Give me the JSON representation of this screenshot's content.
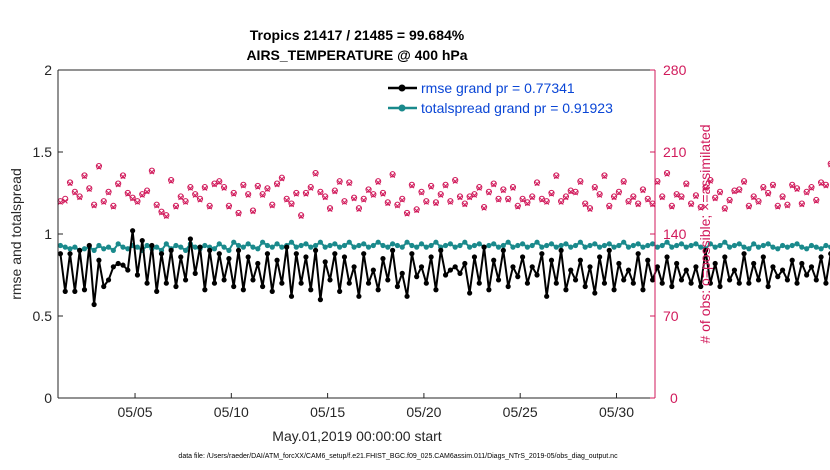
{
  "chart_data": {
    "type": "line",
    "title": "Tropics 21417 / 21485 = 99.684%",
    "subtitle": "AIRS_TEMPERATURE @ 400 hPa",
    "xlabel": "May.01,2019 00:00:00 start",
    "ylabel_left": "rmse and totalspread",
    "ylabel_right": "# of obs: o=possible; ×=assimilated",
    "footnote": "data file: /Users/raeder/DAI/ATM_forcXX/CAM6_setup/f.e21.FHIST_BGC.f09_025.CAM6assim.011/Diags_NTrS_2019-05/obs_diag_output.nc",
    "x_day_range": [
      1,
      32
    ],
    "x_ticks": [
      {
        "day": 5,
        "label": "05/05"
      },
      {
        "day": 10,
        "label": "05/10"
      },
      {
        "day": 15,
        "label": "05/15"
      },
      {
        "day": 20,
        "label": "05/20"
      },
      {
        "day": 25,
        "label": "05/25"
      },
      {
        "day": 30,
        "label": "05/30"
      }
    ],
    "ylim_left": [
      0,
      2
    ],
    "yticks_left": [
      "0",
      "0.5",
      "1",
      "1.5",
      "2"
    ],
    "ylim_right": [
      0,
      280
    ],
    "yticks_right": [
      "0",
      "70",
      "140",
      "210",
      "280"
    ],
    "legend": [
      {
        "label": "rmse grand pr = 0.77341",
        "color": "#000000"
      },
      {
        "label": "totalspread grand pr = 0.91923",
        "color": "#1a8a8c"
      }
    ],
    "samples_per_day": 4,
    "colors": {
      "rmse": "#000000",
      "spread": "#1a8a8c",
      "obs": "#d11a5b",
      "axis": "#262626"
    },
    "series": [
      {
        "name": "rmse",
        "values": [
          0.88,
          0.65,
          0.88,
          0.65,
          0.9,
          0.66,
          0.93,
          0.57,
          0.84,
          0.68,
          0.72,
          0.8,
          0.82,
          0.81,
          0.78,
          1.02,
          0.75,
          0.96,
          0.7,
          0.93,
          0.65,
          0.88,
          0.7,
          0.9,
          0.68,
          0.86,
          0.72,
          0.97,
          0.76,
          0.92,
          0.66,
          0.9,
          0.7,
          0.88,
          0.72,
          0.85,
          0.68,
          0.9,
          0.66,
          0.86,
          0.72,
          0.82,
          0.68,
          0.88,
          0.65,
          0.84,
          0.7,
          0.92,
          0.62,
          0.88,
          0.7,
          0.86,
          0.66,
          0.9,
          0.6,
          0.83,
          0.72,
          0.88,
          0.65,
          0.86,
          0.7,
          0.8,
          0.62,
          0.88,
          0.7,
          0.78,
          0.66,
          0.85,
          0.72,
          0.9,
          0.68,
          0.76,
          0.62,
          0.88,
          0.74,
          0.8,
          0.7,
          0.86,
          0.66,
          0.9,
          0.75,
          0.78,
          0.8,
          0.76,
          0.82,
          0.64,
          0.86,
          0.7,
          0.92,
          0.66,
          0.84,
          0.72,
          0.9,
          0.68,
          0.8,
          0.74,
          0.86,
          0.7,
          0.8,
          0.75,
          0.88,
          0.62,
          0.84,
          0.7,
          0.9,
          0.66,
          0.78,
          0.72,
          0.84,
          0.68,
          0.8,
          0.64,
          0.86,
          0.7,
          0.9,
          0.66,
          0.82,
          0.72,
          0.78,
          0.7,
          0.88,
          0.66,
          0.84,
          0.72,
          0.8,
          0.7,
          0.86,
          0.68,
          0.82,
          0.72,
          0.78,
          0.7,
          0.8,
          0.68,
          0.9,
          0.7,
          0.82,
          0.68,
          0.86,
          0.72,
          0.78,
          0.7,
          0.88,
          0.7,
          0.82,
          0.72,
          0.86,
          0.68,
          0.8,
          0.74,
          0.78,
          0.72,
          0.84,
          0.7,
          0.82,
          0.75,
          0.8,
          0.72,
          0.86,
          0.7,
          0.88,
          0.72,
          0.78,
          0.8,
          0.84,
          0.8,
          0.82,
          0.62,
          0.8,
          0.82,
          0.78,
          0.8,
          0.7,
          0.68
        ]
      },
      {
        "name": "totalspread",
        "values": [
          0.93,
          0.92,
          0.91,
          0.92,
          0.9,
          0.91,
          0.92,
          0.9,
          0.93,
          0.91,
          0.92,
          0.9,
          0.94,
          0.92,
          0.91,
          0.93,
          0.92,
          0.9,
          0.93,
          0.91,
          0.92,
          0.9,
          0.94,
          0.91,
          0.93,
          0.92,
          0.9,
          0.94,
          0.92,
          0.91,
          0.93,
          0.92,
          0.91,
          0.94,
          0.92,
          0.9,
          0.95,
          0.93,
          0.92,
          0.94,
          0.92,
          0.91,
          0.95,
          0.93,
          0.92,
          0.94,
          0.92,
          0.93,
          0.95,
          0.92,
          0.93,
          0.94,
          0.92,
          0.93,
          0.95,
          0.92,
          0.93,
          0.94,
          0.92,
          0.93,
          0.95,
          0.92,
          0.93,
          0.94,
          0.92,
          0.93,
          0.95,
          0.93,
          0.92,
          0.94,
          0.93,
          0.92,
          0.95,
          0.93,
          0.92,
          0.94,
          0.92,
          0.93,
          0.95,
          0.92,
          0.93,
          0.94,
          0.92,
          0.93,
          0.95,
          0.92,
          0.93,
          0.94,
          0.92,
          0.93,
          0.94,
          0.92,
          0.93,
          0.95,
          0.92,
          0.93,
          0.94,
          0.92,
          0.93,
          0.95,
          0.92,
          0.93,
          0.94,
          0.92,
          0.93,
          0.94,
          0.92,
          0.93,
          0.95,
          0.92,
          0.93,
          0.94,
          0.92,
          0.93,
          0.94,
          0.92,
          0.93,
          0.95,
          0.92,
          0.93,
          0.94,
          0.92,
          0.93,
          0.94,
          0.92,
          0.93,
          0.95,
          0.92,
          0.93,
          0.94,
          0.92,
          0.93,
          0.94,
          0.92,
          0.91,
          0.94,
          0.92,
          0.93,
          0.95,
          0.92,
          0.93,
          0.94,
          0.92,
          0.91,
          0.94,
          0.92,
          0.93,
          0.94,
          0.92,
          0.91,
          0.93,
          0.92,
          0.93,
          0.94,
          0.92,
          0.91,
          0.93,
          0.92,
          0.91,
          0.93,
          0.92,
          0.91,
          0.92,
          0.91,
          0.9,
          0.92,
          0.91,
          0.9,
          0.91,
          0.9,
          0.9,
          0.91,
          0.9,
          0.9,
          0.9,
          0.91,
          0.9,
          0.9
        ]
      },
      {
        "name": "obs_possible",
        "axis": "right",
        "values": [
          168,
          170,
          184,
          176,
          172,
          190,
          179,
          165,
          198,
          168,
          176,
          164,
          183,
          190,
          175,
          171,
          168,
          174,
          177,
          194,
          165,
          159,
          156,
          186,
          164,
          172,
          168,
          180,
          174,
          170,
          180,
          164,
          183,
          185,
          180,
          164,
          175,
          158,
          182,
          174,
          160,
          181,
          174,
          179,
          165,
          183,
          188,
          170,
          166,
          175,
          156,
          175,
          180,
          192,
          176,
          172,
          162,
          177,
          185,
          168,
          184,
          171,
          162,
          170,
          178,
          174,
          185,
          175,
          167,
          191,
          165,
          170,
          158,
          182,
          161,
          176,
          168,
          181,
          167,
          174,
          182,
          168,
          186,
          172,
          166,
          172,
          174,
          180,
          163,
          176,
          183,
          170,
          178,
          170,
          180,
          164,
          170,
          167,
          172,
          184,
          170,
          168,
          175,
          190,
          168,
          172,
          177,
          176,
          185,
          166,
          162,
          180,
          174,
          190,
          164,
          172,
          176,
          185,
          168,
          172,
          166,
          178,
          170,
          166,
          185,
          172,
          192,
          164,
          174,
          172,
          183,
          166,
          173,
          163,
          180,
          186,
          171,
          176,
          162,
          169,
          177,
          178,
          185,
          164,
          172,
          168,
          180,
          175,
          182,
          164,
          172,
          165,
          182,
          179,
          166,
          176,
          180,
          169,
          184,
          182,
          200,
          176,
          166,
          170,
          188,
          176,
          174,
          183,
          176,
          168,
          164,
          180,
          172,
          175,
          174,
          186,
          168,
          172,
          176,
          158,
          176,
          180,
          180,
          170,
          152,
          190
        ]
      },
      {
        "name": "obs_assimilated",
        "axis": "right",
        "values": [
          167,
          168,
          183,
          175,
          171,
          189,
          178,
          164,
          197,
          167,
          175,
          163,
          182,
          189,
          174,
          170,
          167,
          173,
          176,
          193,
          164,
          158,
          155,
          185,
          163,
          171,
          167,
          179,
          173,
          169,
          179,
          163,
          182,
          184,
          179,
          163,
          174,
          157,
          181,
          173,
          159,
          180,
          173,
          178,
          164,
          182,
          187,
          169,
          165,
          174,
          155,
          174,
          179,
          191,
          175,
          171,
          161,
          176,
          184,
          167,
          183,
          170,
          161,
          169,
          177,
          173,
          184,
          174,
          166,
          190,
          164,
          169,
          157,
          181,
          160,
          175,
          167,
          180,
          166,
          173,
          181,
          167,
          185,
          171,
          165,
          171,
          173,
          179,
          162,
          175,
          182,
          169,
          177,
          169,
          179,
          163,
          169,
          166,
          171,
          183,
          169,
          167,
          174,
          189,
          167,
          171,
          176,
          175,
          184,
          165,
          161,
          179,
          173,
          189,
          163,
          171,
          175,
          184,
          167,
          171,
          165,
          177,
          169,
          165,
          184,
          171,
          191,
          163,
          173,
          171,
          182,
          165,
          172,
          162,
          179,
          185,
          170,
          175,
          161,
          168,
          176,
          177,
          184,
          163,
          171,
          167,
          179,
          174,
          181,
          163,
          171,
          164,
          181,
          178,
          165,
          175,
          179,
          168,
          183,
          181,
          199,
          175,
          165,
          169,
          187,
          175,
          173,
          182,
          175,
          167,
          163,
          179,
          171,
          174,
          173,
          185,
          167,
          171,
          175,
          157,
          175,
          179,
          179,
          169,
          151,
          189
        ]
      }
    ]
  }
}
